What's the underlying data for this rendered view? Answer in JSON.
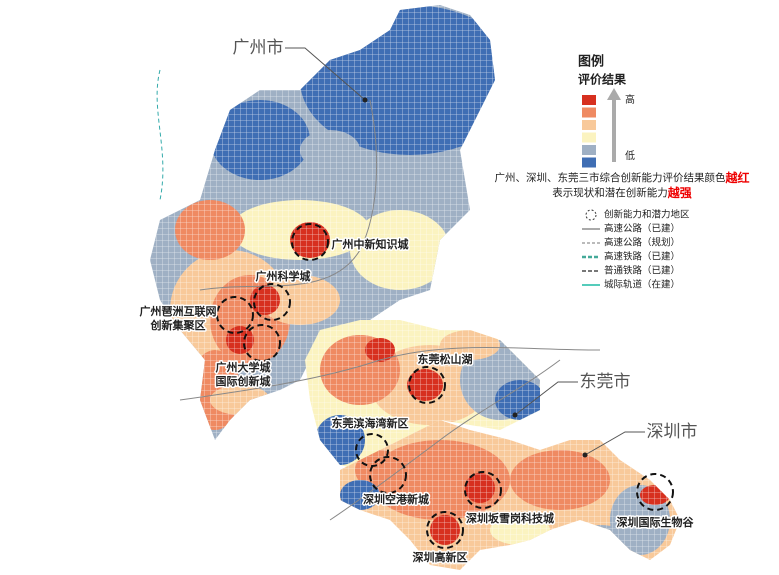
{
  "cities": [
    "广州市",
    "东莞市",
    "深圳市"
  ],
  "areas": [
    [
      "广州中新知识城"
    ],
    [
      "广州科学城"
    ],
    [
      "广州琶洲互联网",
      "创新集聚区"
    ],
    [
      "广州大学城",
      "国际创新城"
    ],
    [
      "东莞松山湖"
    ],
    [
      "东莞滨海湾新区"
    ],
    [
      "深圳空港新城"
    ],
    [
      "深圳坂雪岗科技城"
    ],
    [
      "深圳高新区"
    ],
    [
      "深圳国际生物谷"
    ]
  ],
  "legend": {
    "title": "图例",
    "subtitle": "评价结果",
    "high": "高",
    "low": "低",
    "scale_colors": [
      "#d7301f",
      "#ef8a62",
      "#f8c99a",
      "#fbf3c0",
      "#9fb0c4",
      "#3f6eb4"
    ],
    "note": [
      {
        "text": "广州、深圳、东莞三市综合创新能力评价结果颜色",
        "emphasis": "越红"
      },
      {
        "text": "表示现状和潜在创新能力",
        "emphasis": "越强"
      }
    ],
    "items": [
      "创新能力和潜力地区",
      "高速公路（已建）",
      "高速公路（规划）",
      "高速铁路（已建）",
      "普通铁路（已建）",
      "城际轨道（在建）"
    ]
  }
}
